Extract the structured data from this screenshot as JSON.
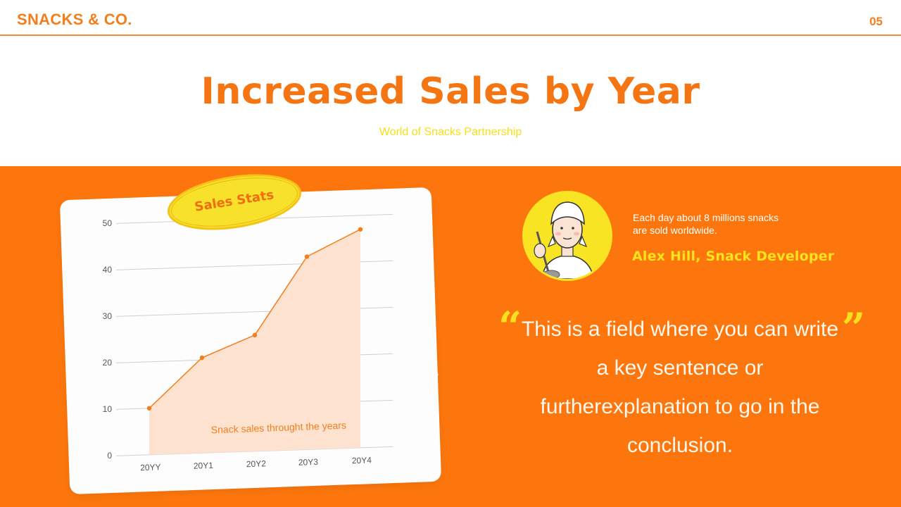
{
  "header": {
    "brand": "SNACKS & CO.",
    "page_number": "05"
  },
  "hero": {
    "title": "Increased Sales by Year",
    "subtitle": "World of Snacks Partnership"
  },
  "chart_card": {
    "badge": "Sales Stats",
    "annotation": "Snack sales throught the years"
  },
  "profile": {
    "avatar_icon": "chef-avatar-illustration",
    "fact": "Each day about 8 millions snacks are sold worldwide.",
    "fact_line1": "Each day about 8 millions snacks",
    "fact_line2": "are sold worldwide.",
    "author": "Alex Hill, Snack Developer"
  },
  "quote": {
    "open_mark": "“",
    "close_mark": "”",
    "text": "This is a field where you can write a key sentence or furtherexplanation to go in the conclusion."
  },
  "colors": {
    "brand_orange": "#f47d1c",
    "background_orange": "#fc760d",
    "accent_yellow": "#f8e31c",
    "area_fill": "#fde3cf",
    "line": "#f47d1c"
  },
  "chart_data": {
    "type": "area",
    "title": "Sales Stats",
    "annotation": "Snack sales throught the years",
    "categories": [
      "20YY",
      "20Y1",
      "20Y2",
      "20Y3",
      "20Y4"
    ],
    "series": [
      {
        "name": "Snack sales",
        "values": [
          10,
          20.5,
          25,
          41.5,
          47
        ]
      }
    ],
    "xlabel": "",
    "ylabel": "",
    "ylim": [
      0,
      50
    ],
    "yticks": [
      0,
      10,
      20,
      30,
      40,
      50
    ],
    "grid": true,
    "legend": "none"
  }
}
